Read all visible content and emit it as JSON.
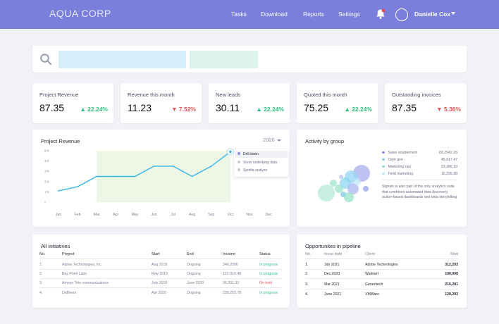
{
  "brand": "AQUA CORP",
  "nav": {
    "items": [
      "Tasks",
      "Download",
      "Reports",
      "Settings"
    ]
  },
  "user": {
    "name": "Danielle Cox"
  },
  "colors": {
    "header": "#7b7fdc",
    "up": "#2bbf7e",
    "down": "#e25555",
    "line": "#37b6ea",
    "area": "#eef7e6",
    "notification": "#e5484d"
  },
  "icons": [
    "search-icon",
    "bell-icon",
    "avatar-icon",
    "chevron-down-icon",
    "triangle-up-icon",
    "triangle-down-icon"
  ],
  "kpis": [
    {
      "label": "Project Revenue",
      "value": "87.35",
      "delta": "22.24%",
      "direction": "up"
    },
    {
      "label": "Revenue this month",
      "value": "11.23",
      "delta": "7.52%",
      "direction": "down"
    },
    {
      "label": "New leads",
      "value": "30.11",
      "delta": "22.24%",
      "direction": "up"
    },
    {
      "label": "Quoted this month",
      "value": "75.25",
      "delta": "22.24%",
      "direction": "up"
    },
    {
      "label": "Outstanding invoices",
      "value": "87.35",
      "delta": "5.36%",
      "direction": "down"
    }
  ],
  "project_chart": {
    "title": "Project Revenue",
    "year": "2020",
    "menu": [
      "Drill down",
      "Show underlying data",
      "Spotfiq analyze"
    ]
  },
  "chart_data": {
    "type": "line",
    "categories": [
      "Jan",
      "Feb",
      "Mar",
      "Apr",
      "May",
      "Jun",
      "Jul",
      "Aug",
      "Sep",
      "Oct",
      "Nov",
      "Dec"
    ],
    "values": [
      11,
      15,
      25,
      25,
      25,
      35,
      35,
      25,
      35,
      49,
      null,
      null
    ],
    "ylim": [
      0,
      50
    ],
    "yticks": [
      "0",
      "10k",
      "20k",
      "30k",
      "40k",
      "50k"
    ],
    "yticks_values": [
      0,
      10,
      20,
      30,
      40,
      50
    ],
    "grid": false,
    "shaded_range": [
      "Mar",
      "Oct"
    ]
  },
  "activity": {
    "title": "Activity by group",
    "legend": [
      {
        "label": "Sales enablement",
        "value": "83,2942.26",
        "color": "#8f88e6"
      },
      {
        "label": "Oem gen",
        "value": "45,917.47",
        "color": "#7fd0f0"
      },
      {
        "label": "Marketing ops",
        "value": "23,386.19",
        "color": "#93e0c4"
      },
      {
        "label": "Field marketing",
        "value": "15,295.98",
        "color": "#bfe3f7"
      }
    ],
    "description": "Signals is also part of the only analytics suite that combines automated data discovery, action-based dashboards and data storytelling"
  },
  "initiatives": {
    "title": "All initiatives",
    "headers": [
      "No.",
      "Project",
      "Start",
      "End",
      "Income",
      "Status"
    ],
    "rows": [
      {
        "no": "1.",
        "project": "Alpine Technologies, Inc",
        "start": "Aug 2018",
        "end": "Ongoing",
        "income": "248,2090",
        "status": "In progress",
        "tone": "green"
      },
      {
        "no": "2.",
        "project": "Bay Point Labs",
        "start": "May 2019",
        "end": "Ongoing",
        "income": "122,013.48",
        "status": "In progress",
        "tone": "green"
      },
      {
        "no": "3.",
        "project": "Amoyo Tele communications",
        "start": "July 2018",
        "end": "June 2020",
        "income": "36,201.32",
        "status": "On hold",
        "tone": "red"
      },
      {
        "no": "4.",
        "project": "DeBeers",
        "start": "Apr 2020",
        "end": "Ongoing",
        "income": "239,293.78",
        "status": "In progress",
        "tone": "green"
      }
    ]
  },
  "pipeline": {
    "title": "Opportunites in pipeline",
    "headers": [
      "No.",
      "Issue date",
      "Client",
      "Total"
    ],
    "rows": [
      {
        "no": "1.",
        "date": "Jan 2021",
        "client": "Adobe Technologies",
        "total": "312,293"
      },
      {
        "no": "2.",
        "date": "Dec 2020",
        "client": "Walmart",
        "total": "100,000"
      },
      {
        "no": "3.",
        "date": "Mar 2021",
        "client": "Genentech",
        "total": "216,281"
      },
      {
        "no": "4.",
        "date": "June 2021",
        "client": "VMWare",
        "total": "120,293"
      }
    ]
  }
}
